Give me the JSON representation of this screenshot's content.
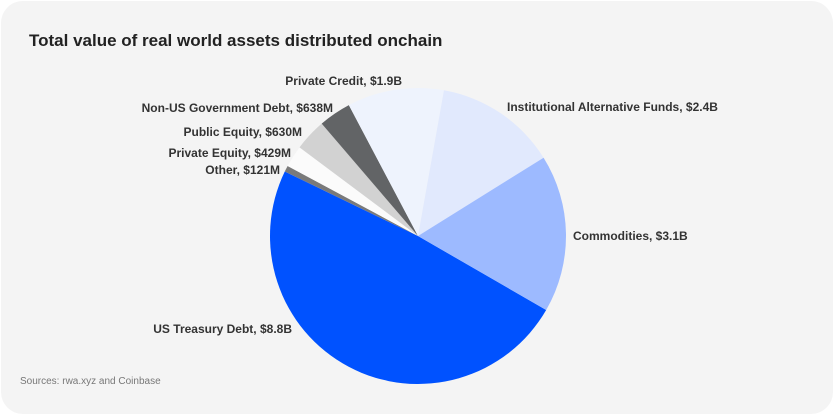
{
  "chart_data": {
    "type": "pie",
    "title": "Total value of real world assets distributed onchain",
    "source": "Sources: rwa.xyz and Coinbase",
    "unit": "USD billions",
    "slices": [
      {
        "label": "US Treasury Debt, $8.8B",
        "value": 8.8,
        "color": "#0052ff"
      },
      {
        "label": "Other, $121M",
        "value": 0.121,
        "color": "#7a7a7a"
      },
      {
        "label": "Private Equity, $429M",
        "value": 0.429,
        "color": "#fbfbfb"
      },
      {
        "label": "Public Equity, $630M",
        "value": 0.63,
        "color": "#d2d2d2"
      },
      {
        "label": "Non-US Government Debt, $638M",
        "value": 0.638,
        "color": "#626466"
      },
      {
        "label": "Private Credit, $1.9B",
        "value": 1.9,
        "color": "#eef3fd"
      },
      {
        "label": "Institutional Alternative Funds, $2.4B",
        "value": 2.4,
        "color": "#e1e9fd"
      },
      {
        "label": "Commodities, $3.1B",
        "value": 3.1,
        "color": "#9dbaff"
      }
    ]
  }
}
